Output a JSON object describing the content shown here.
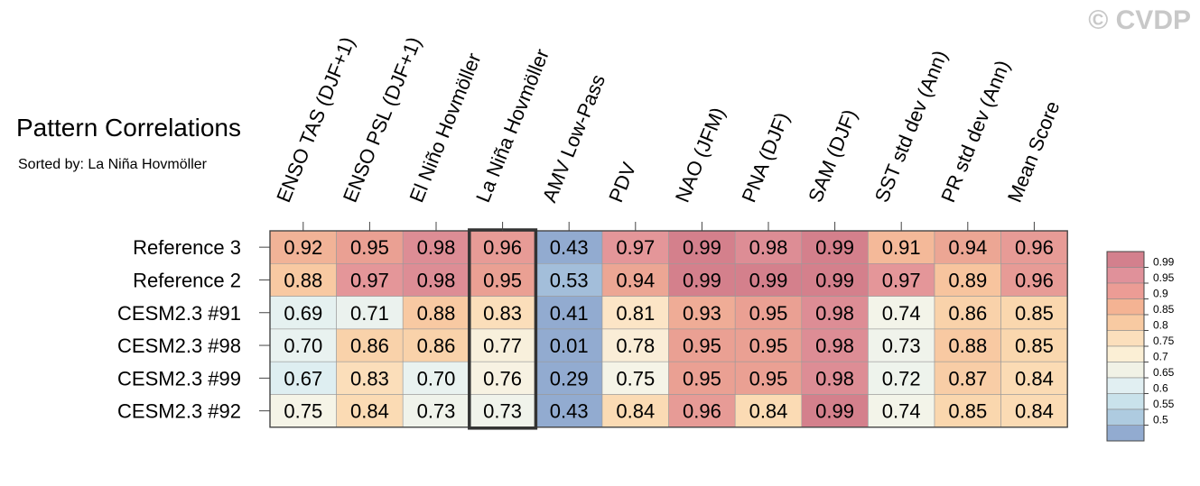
{
  "header": {
    "title": "Pattern Correlations",
    "subtitle": "Sorted by: La Niña Hovmöller",
    "watermark": "© CVDP"
  },
  "chart_data": {
    "type": "heatmap",
    "title": "Pattern Correlations",
    "subtitle": "Sorted by: La Niña Hovmöller",
    "columns": [
      "ENSO TAS (DJF+1)",
      "ENSO PSL (DJF+1)",
      "El Niño Hovmöller",
      "La Niña Hovmöller",
      "AMV Low-Pass",
      "PDV",
      "NAO (JFM)",
      "PNA (DJF)",
      "SAM (DJF)",
      "SST std dev (Ann)",
      "PR std dev (Ann)",
      "Mean Score"
    ],
    "rows": [
      "Reference 3",
      "Reference 2",
      "CESM2.3 #91",
      "CESM2.3 #98",
      "CESM2.3 #99",
      "CESM2.3 #92"
    ],
    "values": [
      [
        "0.92",
        "0.95",
        "0.98",
        "0.96",
        "0.43",
        "0.97",
        "0.99",
        "0.98",
        "0.99",
        "0.91",
        "0.94",
        "0.96"
      ],
      [
        "0.88",
        "0.97",
        "0.98",
        "0.95",
        "0.53",
        "0.94",
        "0.99",
        "0.99",
        "0.99",
        "0.97",
        "0.89",
        "0.96"
      ],
      [
        "0.69",
        "0.71",
        "0.88",
        "0.83",
        "0.41",
        "0.81",
        "0.93",
        "0.95",
        "0.98",
        "0.74",
        "0.86",
        "0.85"
      ],
      [
        "0.70",
        "0.86",
        "0.86",
        "0.77",
        "0.01",
        "0.78",
        "0.95",
        "0.95",
        "0.98",
        "0.73",
        "0.88",
        "0.85"
      ],
      [
        "0.67",
        "0.83",
        "0.70",
        "0.76",
        "0.29",
        "0.75",
        "0.95",
        "0.95",
        "0.98",
        "0.72",
        "0.87",
        "0.84"
      ],
      [
        "0.75",
        "0.84",
        "0.73",
        "0.73",
        "0.43",
        "0.84",
        "0.96",
        "0.84",
        "0.99",
        "0.74",
        "0.85",
        "0.84"
      ]
    ],
    "highlighted_column": "La Niña Hovmöller",
    "colorbar": {
      "labels": [
        "0.99",
        "0.95",
        "0.9",
        "0.85",
        "0.8",
        "0.75",
        "0.7",
        "0.65",
        "0.6",
        "0.55",
        "0.5"
      ],
      "colors": [
        "#d3808d",
        "#e0919a",
        "#ec9c95",
        "#f4b393",
        "#f8caa2",
        "#fbdfbc",
        "#fbefd5",
        "#f1f2e6",
        "#e1eff2",
        "#c9e2eb",
        "#aecbe0",
        "#92abd0"
      ]
    }
  }
}
